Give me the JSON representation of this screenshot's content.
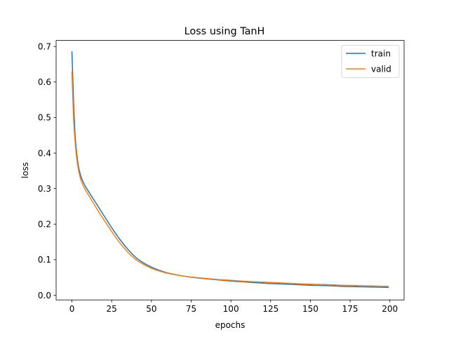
{
  "chart_data": {
    "type": "line",
    "title": "Loss using TanH",
    "xlabel": "epochs",
    "ylabel": "loss",
    "xlim": [
      -9.95,
      208.95
    ],
    "ylim": [
      -0.0133,
      0.717
    ],
    "xticks": [
      0,
      25,
      50,
      75,
      100,
      125,
      150,
      175,
      200
    ],
    "xtick_labels": [
      "0",
      "25",
      "50",
      "75",
      "100",
      "125",
      "150",
      "175",
      "200"
    ],
    "yticks": [
      0.0,
      0.1,
      0.2,
      0.3,
      0.4,
      0.5,
      0.6,
      0.7
    ],
    "ytick_labels": [
      "0.0",
      "0.1",
      "0.2",
      "0.3",
      "0.4",
      "0.5",
      "0.6",
      "0.7"
    ],
    "grid": false,
    "legend_position": "top-right",
    "series": [
      {
        "name": "train",
        "color": "#1f77b4",
        "x": [
          0,
          1,
          2,
          3,
          4,
          5,
          6,
          8,
          10,
          15,
          20,
          25,
          30,
          35,
          40,
          45,
          50,
          55,
          60,
          70,
          80,
          90,
          100,
          110,
          120,
          130,
          140,
          150,
          160,
          170,
          180,
          190,
          199
        ],
        "y": [
          0.685,
          0.55,
          0.45,
          0.4,
          0.365,
          0.345,
          0.33,
          0.31,
          0.295,
          0.26,
          0.225,
          0.19,
          0.158,
          0.13,
          0.107,
          0.091,
          0.079,
          0.07,
          0.063,
          0.054,
          0.048,
          0.044,
          0.04,
          0.037,
          0.034,
          0.032,
          0.03,
          0.028,
          0.027,
          0.025,
          0.024,
          0.023,
          0.022
        ]
      },
      {
        "name": "valid",
        "color": "#ff7f0e",
        "x": [
          0,
          1,
          2,
          3,
          4,
          5,
          6,
          8,
          10,
          15,
          20,
          25,
          30,
          35,
          40,
          45,
          50,
          55,
          60,
          70,
          80,
          90,
          100,
          110,
          120,
          130,
          140,
          150,
          160,
          170,
          180,
          190,
          199
        ],
        "y": [
          0.628,
          0.5,
          0.43,
          0.385,
          0.355,
          0.335,
          0.32,
          0.3,
          0.285,
          0.248,
          0.213,
          0.179,
          0.148,
          0.122,
          0.101,
          0.087,
          0.076,
          0.068,
          0.062,
          0.054,
          0.049,
          0.045,
          0.042,
          0.039,
          0.037,
          0.035,
          0.033,
          0.031,
          0.03,
          0.028,
          0.027,
          0.026,
          0.025
        ]
      }
    ]
  }
}
